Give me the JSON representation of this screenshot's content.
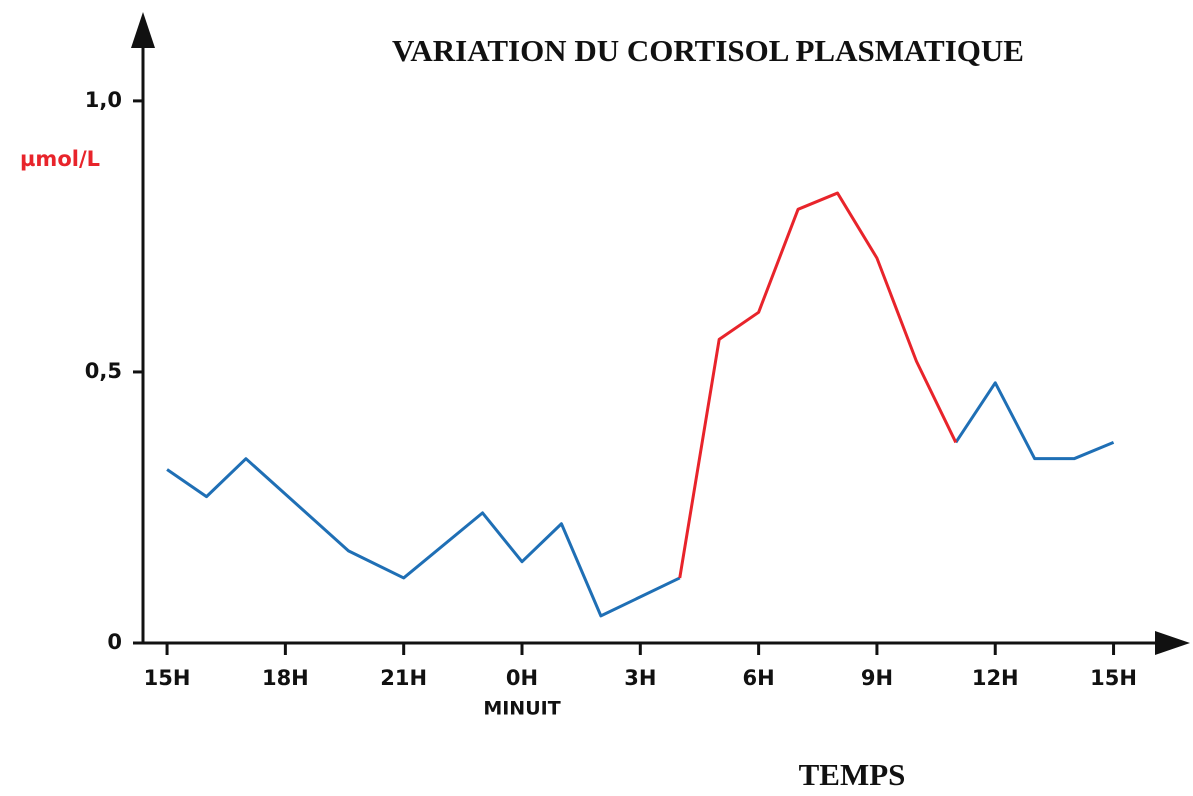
{
  "chart_data": {
    "type": "line",
    "title": "VARIATION DU CORTISOL PLASMATIQUE",
    "y_label": "µmol/L",
    "x_label": "TEMPS",
    "annotation": "MINUIT",
    "x": [
      0,
      1,
      2,
      4.6,
      6,
      8,
      9,
      10,
      11,
      13,
      14,
      15,
      16,
      17,
      18,
      19,
      20,
      21,
      22,
      23,
      24
    ],
    "series": [
      {
        "color": "#1f6fb5",
        "values": [
          0.32,
          0.27,
          0.34,
          0.17,
          0.12,
          0.24,
          0.15,
          0.22,
          0.05,
          0.12,
          null,
          null,
          null,
          null,
          null,
          null,
          0.37,
          0.48,
          0.34,
          0.34,
          0.37
        ]
      },
      {
        "color": "#e8242b",
        "values": [
          null,
          null,
          null,
          null,
          null,
          null,
          null,
          null,
          null,
          0.12,
          0.56,
          0.61,
          0.8,
          0.83,
          0.71,
          0.52,
          0.37,
          null,
          null,
          null,
          null
        ]
      }
    ],
    "xlim": [
      -0.6,
      25.7
    ],
    "ylim": [
      0,
      1.14
    ],
    "xticks": [
      {
        "value": 0,
        "label": "15H"
      },
      {
        "value": 3,
        "label": "18H"
      },
      {
        "value": 6,
        "label": "21H"
      },
      {
        "value": 9,
        "label": "0H"
      },
      {
        "value": 12,
        "label": "3H"
      },
      {
        "value": 15,
        "label": "6H"
      },
      {
        "value": 18,
        "label": "9H"
      },
      {
        "value": 21,
        "label": "12H"
      },
      {
        "value": 24,
        "label": "15H"
      }
    ],
    "yticks": [
      0,
      {
        "value": 0.5,
        "label": "0,5"
      },
      {
        "value": 1,
        "label": "1,0"
      }
    ]
  }
}
